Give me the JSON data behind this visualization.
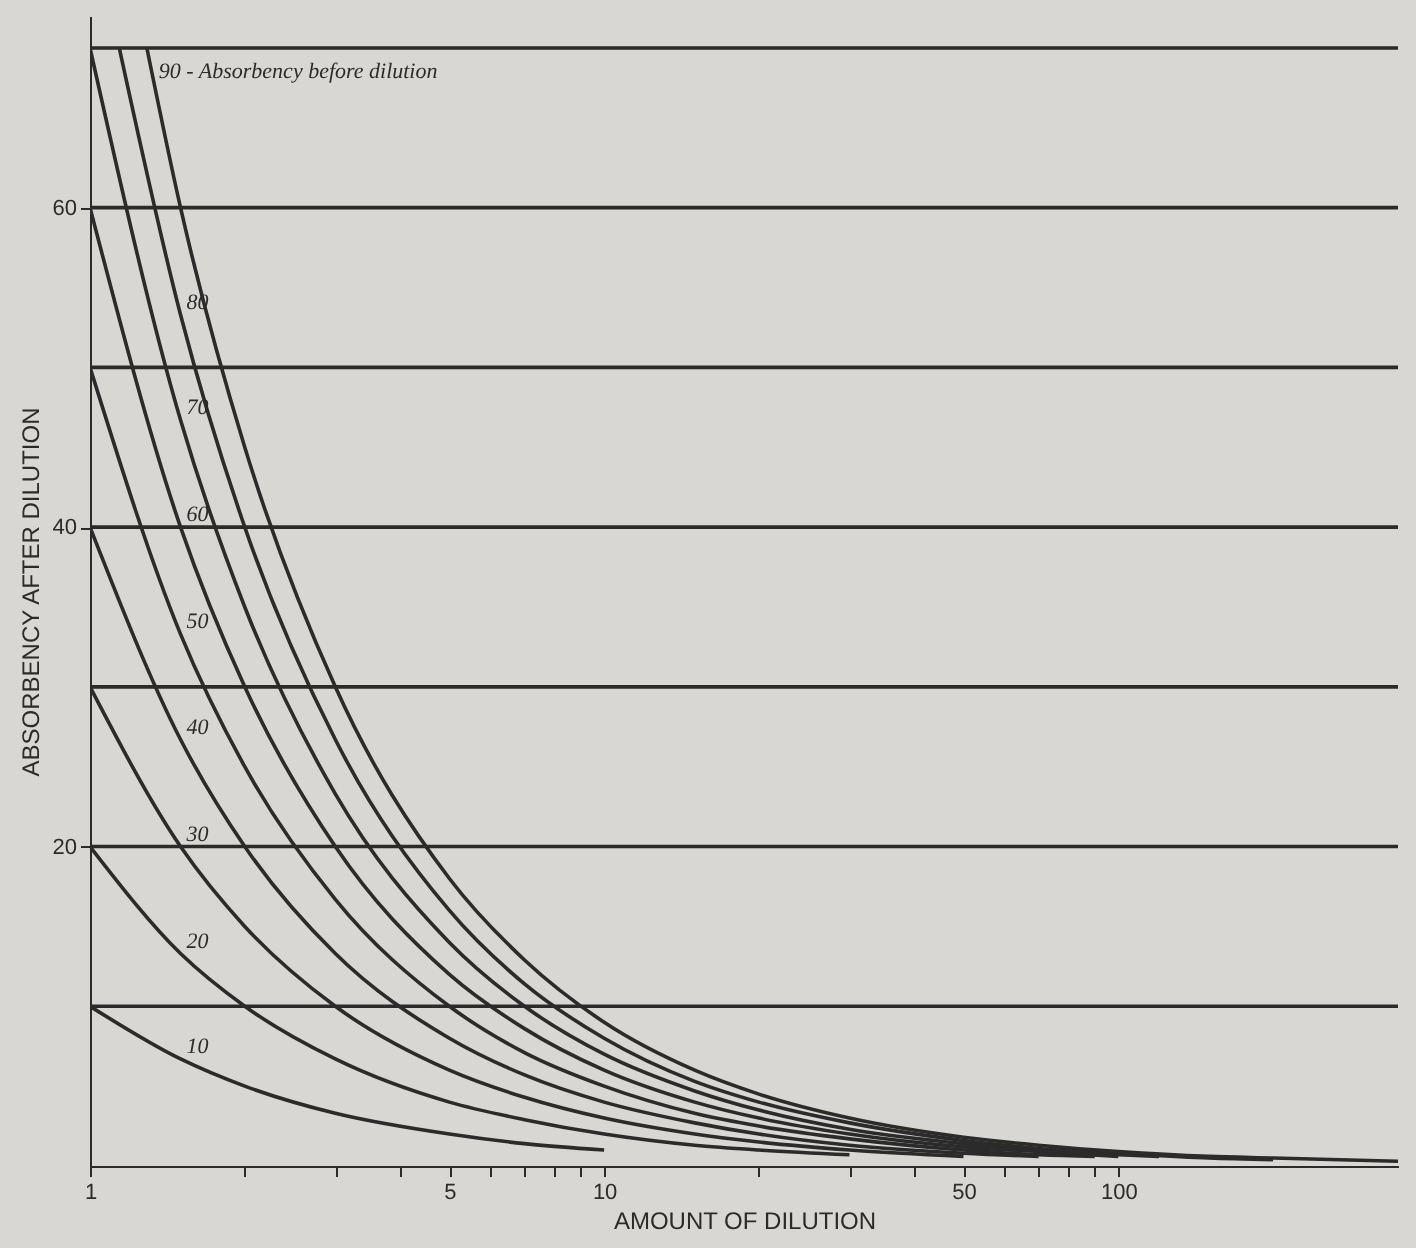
{
  "chart_data": {
    "type": "line",
    "xlabel": "AMOUNT OF DILUTION",
    "ylabel": "ABSORBENCY AFTER DILUTION",
    "log": "x",
    "xlim": [
      1,
      350
    ],
    "ylim": [
      0,
      72
    ],
    "yticks": [
      20,
      40,
      60
    ],
    "xticks": [
      1,
      {
        "value": 2,
        "label": null
      },
      {
        "value": 3,
        "label": null
      },
      {
        "value": 4,
        "label": null
      },
      5,
      {
        "value": 6,
        "label": null
      },
      {
        "value": 7,
        "label": null
      },
      {
        "value": 8,
        "label": null
      },
      {
        "value": 9,
        "label": null
      },
      10,
      {
        "value": 20,
        "label": null
      },
      {
        "value": 30,
        "label": null
      },
      {
        "value": 40,
        "label": null
      },
      50,
      {
        "value": 60,
        "label": null
      },
      {
        "value": 70,
        "label": null
      },
      {
        "value": 80,
        "label": null
      },
      {
        "value": 90,
        "label": null
      },
      100
    ],
    "grid": false,
    "legend": false,
    "marker": "none",
    "line_style": "solid",
    "series": [
      {
        "name": "10",
        "color": "#2b2b2b",
        "x": [
          1,
          1.5,
          2,
          3,
          5,
          7,
          10
        ],
        "values": [
          10,
          6.7,
          5,
          3.3,
          2,
          1.4,
          1
        ]
      },
      {
        "name": "20",
        "color": "#2b2b2b",
        "x": [
          1,
          1.5,
          2,
          3,
          5,
          7,
          10,
          15,
          20,
          30
        ],
        "values": [
          20,
          13.3,
          10,
          6.7,
          4,
          2.9,
          2,
          1.3,
          1,
          0.7
        ]
      },
      {
        "name": "30",
        "color": "#2b2b2b",
        "x": [
          1,
          1.5,
          2,
          3,
          5,
          7,
          10,
          15,
          20,
          30,
          50
        ],
        "values": [
          30,
          20,
          15,
          10,
          6,
          4.3,
          3,
          2,
          1.5,
          1,
          0.6
        ]
      },
      {
        "name": "40",
        "color": "#2b2b2b",
        "x": [
          1,
          1.5,
          2,
          3,
          5,
          7,
          10,
          15,
          20,
          30,
          50,
          70
        ],
        "values": [
          40,
          26.7,
          20,
          13.3,
          8,
          5.7,
          4,
          2.7,
          2,
          1.3,
          0.8,
          0.6
        ]
      },
      {
        "name": "50",
        "color": "#2b2b2b",
        "x": [
          1,
          1.5,
          2,
          3,
          5,
          7,
          10,
          15,
          20,
          30,
          50,
          70,
          90
        ],
        "values": [
          50,
          33.3,
          25,
          16.7,
          10,
          7.1,
          5,
          3.3,
          2.5,
          1.7,
          1,
          0.7,
          0.6
        ]
      },
      {
        "name": "60",
        "color": "#2b2b2b",
        "x": [
          1,
          1.5,
          2,
          3,
          5,
          7,
          10,
          15,
          20,
          30,
          50,
          70,
          100
        ],
        "values": [
          60,
          40,
          30,
          20,
          12,
          8.6,
          6,
          4,
          3,
          2,
          1.2,
          0.9,
          0.6
        ]
      },
      {
        "name": "70",
        "color": "#2b2b2b",
        "x": [
          1,
          1.5,
          2,
          3,
          5,
          7,
          10,
          15,
          20,
          30,
          50,
          70,
          100,
          120
        ],
        "values": [
          70,
          46.7,
          35,
          23.3,
          14,
          10,
          7,
          4.7,
          3.5,
          2.3,
          1.4,
          1,
          0.7,
          0.6
        ]
      },
      {
        "name": "80",
        "color": "#2b2b2b",
        "x": [
          1.14,
          1.5,
          2,
          3,
          5,
          7,
          10,
          15,
          20,
          30,
          50,
          70,
          100,
          150,
          200
        ],
        "values": [
          70,
          53.3,
          40,
          26.7,
          16,
          11.4,
          8,
          5.3,
          4,
          2.7,
          1.6,
          1.1,
          0.8,
          0.5,
          0.4
        ]
      },
      {
        "name": "90 - Absorbency before dilution",
        "color": "#2b2b2b",
        "x": [
          1.29,
          1.5,
          2,
          3,
          5,
          7,
          10,
          15,
          20,
          30,
          50,
          70,
          100,
          150,
          200,
          350
        ],
        "values": [
          70,
          60,
          45,
          30,
          18,
          12.9,
          9,
          6,
          4.5,
          3,
          1.8,
          1.3,
          0.9,
          0.6,
          0.5,
          0.3
        ]
      }
    ],
    "ref_lines": [
      {
        "axis": "y",
        "value": 10,
        "color": "#2b2b2b"
      },
      {
        "axis": "y",
        "value": 20,
        "color": "#2b2b2b"
      },
      {
        "axis": "y",
        "value": 30,
        "color": "#2b2b2b"
      },
      {
        "axis": "y",
        "value": 40,
        "color": "#2b2b2b"
      },
      {
        "axis": "y",
        "value": 50,
        "color": "#2b2b2b"
      },
      {
        "axis": "y",
        "value": 60,
        "color": "#2b2b2b"
      },
      {
        "axis": "y",
        "value": 70,
        "color": "#2b2b2b"
      }
    ]
  }
}
